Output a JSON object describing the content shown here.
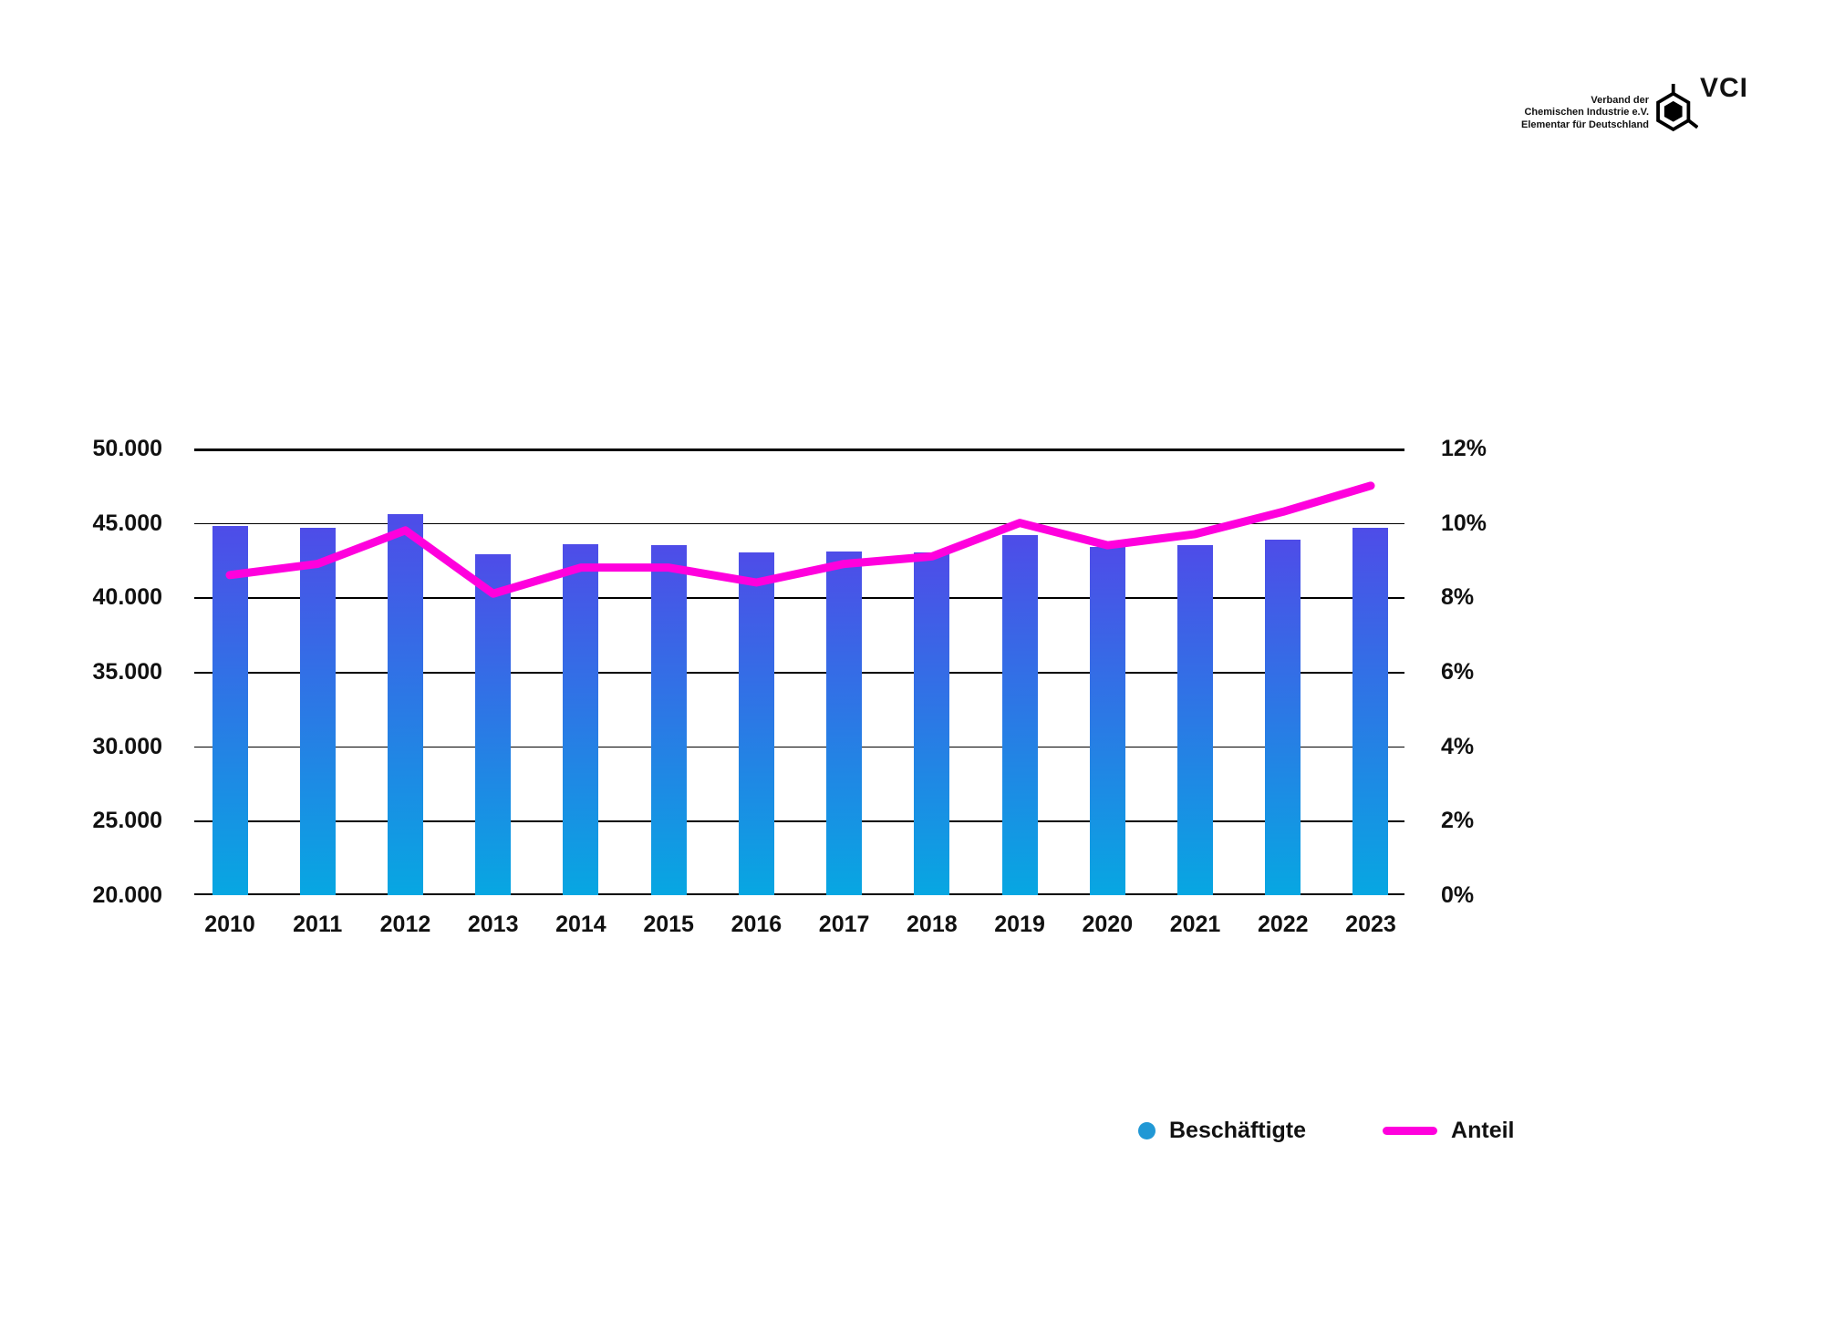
{
  "logo": {
    "text_lines": [
      "Verband der",
      "Chemischen Industrie e.V.",
      "Elementar für Deutschland"
    ],
    "acronym": "VCI"
  },
  "legend": {
    "items": [
      {
        "label": "Beschäftigte",
        "swatch": "dot",
        "color": "#2198d5"
      },
      {
        "label": "Anteil",
        "swatch": "line",
        "color": "#ff00dd"
      }
    ]
  },
  "chart_data": {
    "type": "bar",
    "subtype": "bar+line dual axis",
    "categories": [
      "2010",
      "2011",
      "2012",
      "2013",
      "2014",
      "2015",
      "2016",
      "2017",
      "2018",
      "2019",
      "2020",
      "2021",
      "2022",
      "2023"
    ],
    "series": [
      {
        "name": "Beschäftigte",
        "type": "bar",
        "axis": "left",
        "values": [
          44800,
          44700,
          45600,
          42900,
          43600,
          43500,
          43000,
          43100,
          43000,
          44200,
          43400,
          43500,
          43900,
          44700
        ]
      },
      {
        "name": "Anteil",
        "type": "line",
        "axis": "right",
        "unit": "%",
        "values": [
          8.6,
          8.9,
          9.8,
          8.1,
          8.8,
          8.8,
          8.4,
          8.9,
          9.1,
          10.0,
          9.4,
          9.7,
          10.3,
          11.0
        ]
      }
    ],
    "left_axis": {
      "min": 20000,
      "max": 50000,
      "tick_labels": [
        "50.000",
        "45.000",
        "40.000",
        "35.000",
        "30.000",
        "25.000",
        "20.000"
      ]
    },
    "right_axis": {
      "min": 0,
      "max": 12,
      "tick_labels": [
        "12%",
        "10%",
        "8%",
        "6%",
        "4%",
        "2%",
        "0%"
      ]
    },
    "grid": true,
    "legend_position": "bottom-right",
    "colors": {
      "bar_gradient_top": "#4e4ce8",
      "bar_gradient_bottom": "#07a7e2",
      "line": "#ff00dd",
      "grid": "#000000",
      "text": "#111111"
    }
  }
}
